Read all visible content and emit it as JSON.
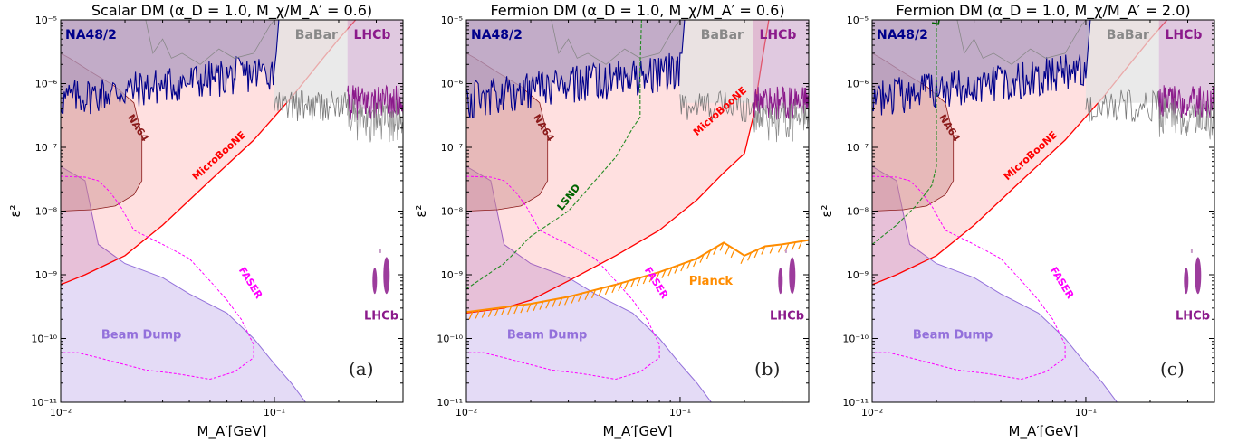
{
  "figure": {
    "panels": [
      {
        "title": "Scalar DM  (α_D = 1.0, M_χ/M_A′ = 0.6)",
        "panel_label": "(a)",
        "has_lsnd": false,
        "has_planck": false,
        "lsnd_label": "",
        "planck_label": ""
      },
      {
        "title": "Fermion DM  (α_D = 1.0, M_χ/M_A′ = 0.6)",
        "panel_label": "(b)",
        "has_lsnd": true,
        "has_planck": true,
        "lsnd_label": "LSND",
        "planck_label": "Planck"
      },
      {
        "title": "Fermion DM  (α_D = 1.0, M_χ/M_A′ = 2.0)",
        "panel_label": "(c)",
        "has_lsnd": true,
        "has_planck": false,
        "lsnd_label": "LSND",
        "planck_label": ""
      }
    ],
    "xlabel": "M_A′[GeV]",
    "ylabel": "ε²",
    "xticks": [
      "10⁻²",
      "10⁻¹"
    ],
    "yticks": [
      "10⁻¹¹",
      "10⁻¹⁰",
      "10⁻⁹",
      "10⁻⁸",
      "10⁻⁷",
      "10⁻⁶",
      "10⁻⁵"
    ],
    "region_labels": {
      "na48": "NA48/2",
      "babar": "BaBar",
      "lhcb_top": "LHCb",
      "lhcb_bottom": "LHCb",
      "na64": "NA64",
      "microboone": "MicroBooNE",
      "faser": "FASER",
      "beam_dump": "Beam Dump"
    },
    "colors": {
      "na48_fill": "#ad9bc0",
      "na48_line": "#00008b",
      "babar": "#e3e3e3",
      "lhcb": "#c79cc7",
      "lhcb_line": "#8b1a8b",
      "na64": "#c98a8a",
      "microboone": "#ff0000",
      "faser": "#ff00ff",
      "beam_dump": "#9370db",
      "lsnd": "#228b22",
      "planck": "#ff8c00"
    }
  },
  "chart_data": [
    {
      "type": "area",
      "title": "Scalar DM  (α_D = 1.0, M_χ/M_A′ = 0.6)",
      "xlabel": "M_A′[GeV]",
      "ylabel": "ε²",
      "xscale": "log",
      "yscale": "log",
      "xlim": [
        0.01,
        0.4
      ],
      "ylim": [
        1e-11,
        1e-05
      ],
      "series": [
        {
          "name": "MicroBooNE",
          "x": [
            0.01,
            0.02,
            0.05,
            0.1,
            0.2,
            0.25
          ],
          "y": [
            7e-10,
            2e-09,
            3e-08,
            3e-07,
            3e-06,
            1e-05
          ]
        },
        {
          "name": "NA64",
          "x": [
            0.01,
            0.018,
            0.023,
            0.024,
            0.022,
            0.018,
            0.012,
            0.01
          ],
          "y": [
            1e-08,
            1.2e-08,
            2.5e-08,
            1.5e-07,
            5e-07,
            1e-06,
            2e-06,
            3e-06
          ]
        },
        {
          "name": "Beam Dump",
          "x": [
            0.01,
            0.015,
            0.02,
            0.04,
            0.08,
            0.12,
            0.14
          ],
          "y": [
            5e-08,
            3e-09,
            1.5e-09,
            5e-10,
            1e-10,
            2e-11,
            1e-11
          ]
        },
        {
          "name": "FASER",
          "x": [
            0.01,
            0.015,
            0.02,
            0.03,
            0.05,
            0.08,
            0.08,
            0.05,
            0.03,
            0.015,
            0.01
          ],
          "y": [
            3.5e-08,
            3e-08,
            1e-08,
            3e-09,
            8e-10,
            8e-11,
            5e-11,
            2.3e-11,
            3e-11,
            5e-11,
            6e-11
          ]
        },
        {
          "name": "NA48/2",
          "x": [
            0.01,
            0.03,
            0.06,
            0.1,
            0.11
          ],
          "y": [
            6e-07,
            6e-07,
            1e-06,
            2e-06,
            1e-05
          ]
        },
        {
          "name": "BaBar",
          "x": [
            0.1,
            0.2,
            0.22
          ],
          "y": [
            5e-07,
            5e-07,
            5e-07
          ]
        },
        {
          "name": "LHCb",
          "x": [
            0.22,
            0.3,
            0.4
          ],
          "y": [
            4e-07,
            5e-07,
            4e-07
          ]
        }
      ]
    },
    {
      "type": "area",
      "title": "Fermion DM  (α_D = 1.0, M_χ/M_A′ = 0.6)",
      "xlabel": "M_A′[GeV]",
      "ylabel": "ε²",
      "xscale": "log",
      "yscale": "log",
      "xlim": [
        0.01,
        0.4
      ],
      "ylim": [
        1e-11,
        1e-05
      ],
      "series": [
        {
          "name": "MicroBooNE",
          "x": [
            0.01,
            0.02,
            0.05,
            0.1,
            0.2,
            0.25
          ],
          "y": [
            2.5e-10,
            4e-10,
            2e-09,
            1e-08,
            8e-08,
            1e-05
          ]
        },
        {
          "name": "LSND",
          "x": [
            0.01,
            0.02,
            0.04,
            0.06,
            0.065,
            0.065
          ],
          "y": [
            6e-10,
            4e-09,
            2e-08,
            2e-07,
            2e-06,
            1e-05
          ]
        },
        {
          "name": "Planck",
          "x": [
            0.01,
            0.03,
            0.05,
            0.1,
            0.16,
            0.2,
            0.3,
            0.4
          ],
          "y": [
            2.5e-10,
            4e-10,
            7e-10,
            1.3e-09,
            3e-09,
            2e-09,
            3e-09,
            3.5e-09
          ]
        },
        {
          "name": "Beam Dump",
          "x": [
            0.01,
            0.015,
            0.02,
            0.04,
            0.08,
            0.12,
            0.14
          ],
          "y": [
            5e-08,
            3e-09,
            1.5e-09,
            5e-10,
            1e-10,
            2e-11,
            1e-11
          ]
        },
        {
          "name": "FASER",
          "x": [
            0.01,
            0.015,
            0.02,
            0.03,
            0.05,
            0.08,
            0.08,
            0.05,
            0.03,
            0.015,
            0.01
          ],
          "y": [
            3.5e-08,
            3e-08,
            1e-08,
            3e-09,
            8e-10,
            8e-11,
            5e-11,
            2.3e-11,
            3e-11,
            5e-11,
            6e-11
          ]
        }
      ]
    },
    {
      "type": "area",
      "title": "Fermion DM  (α_D = 1.0, M_χ/M_A′ = 2.0)",
      "xlabel": "M_A′[GeV]",
      "ylabel": "ε²",
      "xscale": "log",
      "yscale": "log",
      "xlim": [
        0.01,
        0.4
      ],
      "ylim": [
        1e-11,
        1e-05
      ],
      "series": [
        {
          "name": "MicroBooNE",
          "x": [
            0.01,
            0.02,
            0.05,
            0.1,
            0.2,
            0.25
          ],
          "y": [
            7e-10,
            2e-09,
            3e-08,
            3e-07,
            3e-06,
            1e-05
          ]
        },
        {
          "name": "LSND",
          "x": [
            0.01,
            0.015,
            0.02,
            0.02,
            0.02
          ],
          "y": [
            3e-09,
            1e-08,
            5e-08,
            1e-06,
            1e-05
          ]
        },
        {
          "name": "Beam Dump",
          "x": [
            0.01,
            0.015,
            0.02,
            0.04,
            0.08,
            0.12,
            0.14
          ],
          "y": [
            5e-08,
            3e-09,
            1.5e-09,
            5e-10,
            1e-10,
            2e-11,
            1e-11
          ]
        },
        {
          "name": "FASER",
          "x": [
            0.01,
            0.015,
            0.02,
            0.03,
            0.05,
            0.08,
            0.08,
            0.05,
            0.03,
            0.015,
            0.01
          ],
          "y": [
            3.5e-08,
            3e-08,
            1e-08,
            3e-09,
            8e-10,
            8e-11,
            5e-11,
            2.3e-11,
            3e-11,
            5e-11,
            6e-11
          ]
        }
      ]
    }
  ]
}
